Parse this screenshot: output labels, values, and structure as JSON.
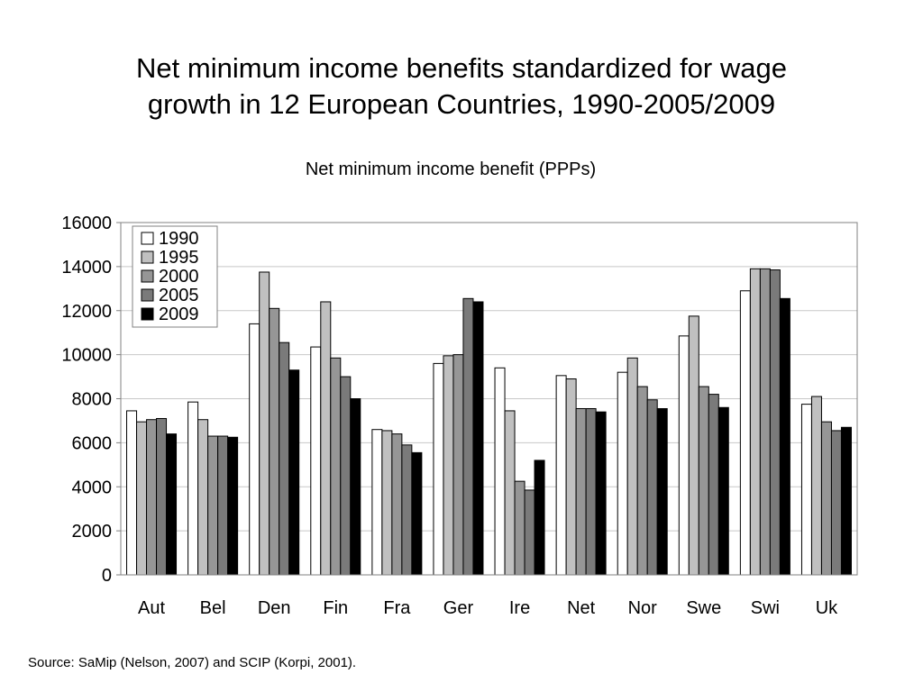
{
  "slide": {
    "title_line1": "Net minimum income benefits standardized for wage",
    "title_line2": "growth in 12 European Countries, 1990-2005/2009",
    "source": "Source: SaMip (Nelson, 2007) and SCIP (Korpi, 2001)."
  },
  "chart_data": {
    "type": "bar",
    "title": "Net minimum income benefit (PPPs)",
    "xlabel": "",
    "ylabel": "",
    "ylim": [
      0,
      16000
    ],
    "yticks": [
      0,
      2000,
      4000,
      6000,
      8000,
      10000,
      12000,
      14000,
      16000
    ],
    "grid": true,
    "legend_position": "top-left",
    "categories": [
      "Aut",
      "Bel",
      "Den",
      "Fin",
      "Fra",
      "Ger",
      "Ire",
      "Net",
      "Nor",
      "Swe",
      "Swi",
      "Uk"
    ],
    "series": [
      {
        "name": "1990",
        "color": "#ffffff",
        "values": [
          7450,
          7850,
          11400,
          10350,
          6600,
          9600,
          9400,
          9050,
          9200,
          10850,
          12900,
          7750
        ]
      },
      {
        "name": "1995",
        "color": "#c0c0c0",
        "values": [
          6950,
          7050,
          13750,
          12400,
          6550,
          9950,
          7450,
          8900,
          9850,
          11750,
          13900,
          8100
        ]
      },
      {
        "name": "2000",
        "color": "#969696",
        "values": [
          7050,
          6300,
          12100,
          9850,
          6400,
          10000,
          4250,
          7550,
          8550,
          8550,
          13900,
          6950
        ]
      },
      {
        "name": "2005",
        "color": "#7a7a7a",
        "values": [
          7100,
          6300,
          10550,
          9000,
          5900,
          12550,
          3850,
          7550,
          7950,
          8200,
          13850,
          6550
        ]
      },
      {
        "name": "2009",
        "color": "#000000",
        "values": [
          6400,
          6250,
          9300,
          8000,
          5550,
          12400,
          5200,
          7400,
          7550,
          7600,
          12550,
          6700
        ]
      }
    ]
  }
}
